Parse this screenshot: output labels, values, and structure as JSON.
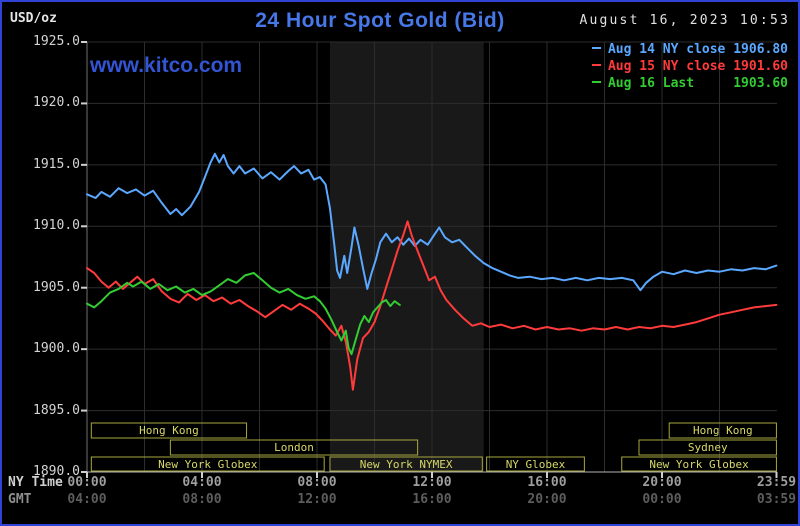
{
  "header": {
    "units": "USD/oz",
    "title": "24 Hour Spot Gold (Bid)",
    "datetime": "August 16, 2023 10:53",
    "watermark": "www.kitco.com"
  },
  "colors": {
    "background": "#000000",
    "border": "#2f43d4",
    "title": "#4778e8",
    "watermark": "#3355d4",
    "grid": "#2d2d2d",
    "shaded": "#191919",
    "axis": "#b5b5b5",
    "tick": "#cfcfcf",
    "session_box": "#a8a83f",
    "session_text": "#d8d868"
  },
  "legend": {
    "entries": [
      {
        "text": "Aug 14 NY close 1906.80",
        "color": "#5aa8ff"
      },
      {
        "text": "Aug 15 NY close 1901.60",
        "color": "#ff3b3b"
      },
      {
        "text": "Aug 16 Last     1903.60",
        "color": "#33cc33"
      }
    ]
  },
  "axes": {
    "y_ticks": [
      "1925.0",
      "1920.0",
      "1915.0",
      "1910.0",
      "1905.0",
      "1900.0",
      "1895.0",
      "1890.0"
    ],
    "tick_hours": [
      0,
      4,
      8,
      12,
      16,
      20,
      23.983
    ],
    "x_rows": [
      {
        "name": "NY Time",
        "ticks": [
          "00:00",
          "04:00",
          "08:00",
          "12:00",
          "16:00",
          "20:00",
          "23:59"
        ]
      },
      {
        "name": "GMT",
        "ticks": [
          "04:00",
          "08:00",
          "12:00",
          "16:00",
          "20:00",
          "00:00",
          "03:59"
        ]
      }
    ]
  },
  "sessions": [
    {
      "label": "Hong Kong",
      "row": 1,
      "start_hour": 0.15,
      "end_hour": 5.55
    },
    {
      "label": "Hong Kong",
      "row": 1,
      "start_hour": 20.25,
      "end_hour": 23.98
    },
    {
      "label": "London",
      "row": 2,
      "start_hour": 2.9,
      "end_hour": 11.5
    },
    {
      "label": "Sydney",
      "row": 2,
      "start_hour": 19.2,
      "end_hour": 23.98
    },
    {
      "label": "New York Globex",
      "row": 3,
      "start_hour": 0.15,
      "end_hour": 8.25
    },
    {
      "label": "New York NYMEX",
      "row": 3,
      "start_hour": 8.45,
      "end_hour": 13.75
    },
    {
      "label": "NY Globex",
      "row": 3,
      "start_hour": 13.9,
      "end_hour": 17.3
    },
    {
      "label": "New York Globex",
      "row": 3,
      "start_hour": 18.6,
      "end_hour": 23.98
    }
  ],
  "chart_data": {
    "type": "line",
    "title": "24 Hour Spot Gold (Bid)",
    "ylabel": "USD/oz",
    "ylim": [
      1890,
      1925
    ],
    "xlim": [
      0,
      24
    ],
    "x_unit": "hours, NY time",
    "grid": {
      "x_step_hours": 2,
      "y_step": 5
    },
    "shaded_region_hours": [
      8.45,
      13.8
    ],
    "series": [
      {
        "id": "aug-14",
        "name": "Aug 14",
        "legend": "Aug 14 NY close 1906.80",
        "close": 1906.8,
        "color": "#5aa8ff",
        "points": [
          [
            0,
            1912.6
          ],
          [
            0.3,
            1912.3
          ],
          [
            0.5,
            1912.8
          ],
          [
            0.8,
            1912.4
          ],
          [
            1.1,
            1913.1
          ],
          [
            1.4,
            1912.7
          ],
          [
            1.7,
            1913.0
          ],
          [
            2.0,
            1912.5
          ],
          [
            2.3,
            1912.9
          ],
          [
            2.6,
            1911.9
          ],
          [
            2.9,
            1911.0
          ],
          [
            3.1,
            1911.4
          ],
          [
            3.3,
            1910.9
          ],
          [
            3.6,
            1911.6
          ],
          [
            3.9,
            1912.8
          ],
          [
            4.1,
            1914.0
          ],
          [
            4.3,
            1915.2
          ],
          [
            4.45,
            1915.9
          ],
          [
            4.6,
            1915.2
          ],
          [
            4.75,
            1915.8
          ],
          [
            4.9,
            1914.9
          ],
          [
            5.1,
            1914.3
          ],
          [
            5.3,
            1914.9
          ],
          [
            5.5,
            1914.3
          ],
          [
            5.8,
            1914.7
          ],
          [
            6.1,
            1913.9
          ],
          [
            6.4,
            1914.4
          ],
          [
            6.7,
            1913.8
          ],
          [
            7.0,
            1914.5
          ],
          [
            7.2,
            1914.9
          ],
          [
            7.45,
            1914.3
          ],
          [
            7.7,
            1914.6
          ],
          [
            7.9,
            1913.8
          ],
          [
            8.1,
            1914.0
          ],
          [
            8.3,
            1913.4
          ],
          [
            8.45,
            1911.5
          ],
          [
            8.6,
            1908.5
          ],
          [
            8.7,
            1906.4
          ],
          [
            8.8,
            1905.8
          ],
          [
            8.95,
            1907.6
          ],
          [
            9.05,
            1906.2
          ],
          [
            9.2,
            1908.3
          ],
          [
            9.3,
            1909.9
          ],
          [
            9.45,
            1908.4
          ],
          [
            9.6,
            1906.6
          ],
          [
            9.75,
            1904.9
          ],
          [
            9.9,
            1906.2
          ],
          [
            10.05,
            1907.3
          ],
          [
            10.2,
            1908.7
          ],
          [
            10.4,
            1909.4
          ],
          [
            10.6,
            1908.7
          ],
          [
            10.8,
            1909.1
          ],
          [
            11.0,
            1908.5
          ],
          [
            11.2,
            1909.0
          ],
          [
            11.4,
            1908.4
          ],
          [
            11.6,
            1908.9
          ],
          [
            11.85,
            1908.5
          ],
          [
            12.05,
            1909.2
          ],
          [
            12.25,
            1909.9
          ],
          [
            12.45,
            1909.1
          ],
          [
            12.7,
            1908.7
          ],
          [
            12.95,
            1908.9
          ],
          [
            13.2,
            1908.3
          ],
          [
            13.5,
            1907.6
          ],
          [
            13.8,
            1907.0
          ],
          [
            14.1,
            1906.6
          ],
          [
            14.4,
            1906.3
          ],
          [
            14.7,
            1906.0
          ],
          [
            15.0,
            1905.8
          ],
          [
            15.4,
            1905.9
          ],
          [
            15.8,
            1905.7
          ],
          [
            16.2,
            1905.8
          ],
          [
            16.6,
            1905.6
          ],
          [
            17.0,
            1905.8
          ],
          [
            17.4,
            1905.6
          ],
          [
            17.8,
            1905.8
          ],
          [
            18.2,
            1905.7
          ],
          [
            18.6,
            1905.8
          ],
          [
            19.0,
            1905.6
          ],
          [
            19.25,
            1904.8
          ],
          [
            19.45,
            1905.4
          ],
          [
            19.7,
            1905.9
          ],
          [
            20.0,
            1906.3
          ],
          [
            20.4,
            1906.1
          ],
          [
            20.8,
            1906.4
          ],
          [
            21.2,
            1906.2
          ],
          [
            21.6,
            1906.4
          ],
          [
            22.0,
            1906.3
          ],
          [
            22.4,
            1906.5
          ],
          [
            22.8,
            1906.4
          ],
          [
            23.2,
            1906.6
          ],
          [
            23.6,
            1906.5
          ],
          [
            23.98,
            1906.8
          ]
        ]
      },
      {
        "id": "aug-15",
        "name": "Aug 15",
        "legend": "Aug 15 NY close 1901.60",
        "close": 1901.6,
        "color": "#ff3b3b",
        "points": [
          [
            0,
            1906.6
          ],
          [
            0.25,
            1906.2
          ],
          [
            0.5,
            1905.5
          ],
          [
            0.75,
            1905.0
          ],
          [
            1.0,
            1905.5
          ],
          [
            1.25,
            1904.9
          ],
          [
            1.5,
            1905.4
          ],
          [
            1.75,
            1905.9
          ],
          [
            2.0,
            1905.3
          ],
          [
            2.3,
            1905.7
          ],
          [
            2.6,
            1904.7
          ],
          [
            2.9,
            1904.1
          ],
          [
            3.2,
            1903.8
          ],
          [
            3.5,
            1904.5
          ],
          [
            3.8,
            1904.0
          ],
          [
            4.1,
            1904.4
          ],
          [
            4.4,
            1903.9
          ],
          [
            4.7,
            1904.2
          ],
          [
            5.0,
            1903.7
          ],
          [
            5.3,
            1904.0
          ],
          [
            5.6,
            1903.5
          ],
          [
            5.9,
            1903.1
          ],
          [
            6.2,
            1902.6
          ],
          [
            6.5,
            1903.1
          ],
          [
            6.8,
            1903.6
          ],
          [
            7.1,
            1903.2
          ],
          [
            7.4,
            1903.7
          ],
          [
            7.7,
            1903.3
          ],
          [
            7.95,
            1902.9
          ],
          [
            8.2,
            1902.3
          ],
          [
            8.45,
            1901.6
          ],
          [
            8.65,
            1901.1
          ],
          [
            8.85,
            1901.9
          ],
          [
            9.0,
            1900.6
          ],
          [
            9.15,
            1898.6
          ],
          [
            9.25,
            1896.7
          ],
          [
            9.4,
            1899.2
          ],
          [
            9.6,
            1900.9
          ],
          [
            9.8,
            1901.4
          ],
          [
            10.0,
            1902.2
          ],
          [
            10.2,
            1903.5
          ],
          [
            10.4,
            1905.0
          ],
          [
            10.6,
            1906.5
          ],
          [
            10.8,
            1908.0
          ],
          [
            11.0,
            1909.3
          ],
          [
            11.15,
            1910.4
          ],
          [
            11.3,
            1909.2
          ],
          [
            11.5,
            1908.0
          ],
          [
            11.7,
            1906.8
          ],
          [
            11.9,
            1905.6
          ],
          [
            12.1,
            1905.9
          ],
          [
            12.3,
            1904.8
          ],
          [
            12.5,
            1904.0
          ],
          [
            12.8,
            1903.2
          ],
          [
            13.1,
            1902.5
          ],
          [
            13.4,
            1901.9
          ],
          [
            13.7,
            1902.1
          ],
          [
            14.0,
            1901.8
          ],
          [
            14.4,
            1902.0
          ],
          [
            14.8,
            1901.7
          ],
          [
            15.2,
            1901.9
          ],
          [
            15.6,
            1901.6
          ],
          [
            16.0,
            1901.8
          ],
          [
            16.4,
            1901.6
          ],
          [
            16.8,
            1901.7
          ],
          [
            17.2,
            1901.5
          ],
          [
            17.6,
            1901.7
          ],
          [
            18.0,
            1901.6
          ],
          [
            18.4,
            1901.8
          ],
          [
            18.8,
            1901.6
          ],
          [
            19.2,
            1901.8
          ],
          [
            19.6,
            1901.7
          ],
          [
            20.0,
            1901.9
          ],
          [
            20.4,
            1901.8
          ],
          [
            20.8,
            1902.0
          ],
          [
            21.2,
            1902.2
          ],
          [
            21.6,
            1902.5
          ],
          [
            22.0,
            1902.8
          ],
          [
            22.4,
            1903.0
          ],
          [
            22.8,
            1903.2
          ],
          [
            23.2,
            1903.4
          ],
          [
            23.6,
            1903.5
          ],
          [
            23.98,
            1903.6
          ]
        ]
      },
      {
        "id": "aug-16",
        "name": "Aug 16",
        "legend": "Aug 16 Last 1903.60",
        "last": 1903.6,
        "color": "#33cc33",
        "points": [
          [
            0,
            1903.7
          ],
          [
            0.25,
            1903.4
          ],
          [
            0.5,
            1903.9
          ],
          [
            0.8,
            1904.6
          ],
          [
            1.1,
            1904.9
          ],
          [
            1.4,
            1905.4
          ],
          [
            1.6,
            1905.1
          ],
          [
            1.9,
            1905.5
          ],
          [
            2.2,
            1904.9
          ],
          [
            2.5,
            1905.3
          ],
          [
            2.8,
            1904.8
          ],
          [
            3.1,
            1905.1
          ],
          [
            3.4,
            1904.6
          ],
          [
            3.7,
            1904.9
          ],
          [
            4.0,
            1904.4
          ],
          [
            4.3,
            1904.7
          ],
          [
            4.6,
            1905.2
          ],
          [
            4.9,
            1905.7
          ],
          [
            5.2,
            1905.4
          ],
          [
            5.5,
            1906.0
          ],
          [
            5.8,
            1906.2
          ],
          [
            6.1,
            1905.6
          ],
          [
            6.4,
            1905.0
          ],
          [
            6.7,
            1904.6
          ],
          [
            7.0,
            1904.9
          ],
          [
            7.3,
            1904.4
          ],
          [
            7.6,
            1904.1
          ],
          [
            7.9,
            1904.3
          ],
          [
            8.1,
            1903.9
          ],
          [
            8.3,
            1903.3
          ],
          [
            8.5,
            1902.4
          ],
          [
            8.7,
            1901.4
          ],
          [
            8.85,
            1900.7
          ],
          [
            9.0,
            1901.5
          ],
          [
            9.1,
            1900.1
          ],
          [
            9.2,
            1899.6
          ],
          [
            9.35,
            1900.8
          ],
          [
            9.5,
            1902.0
          ],
          [
            9.65,
            1902.7
          ],
          [
            9.8,
            1902.2
          ],
          [
            9.95,
            1903.0
          ],
          [
            10.1,
            1903.4
          ],
          [
            10.25,
            1903.8
          ],
          [
            10.4,
            1904.0
          ],
          [
            10.55,
            1903.5
          ],
          [
            10.7,
            1903.9
          ],
          [
            10.88,
            1903.6
          ]
        ]
      }
    ]
  }
}
